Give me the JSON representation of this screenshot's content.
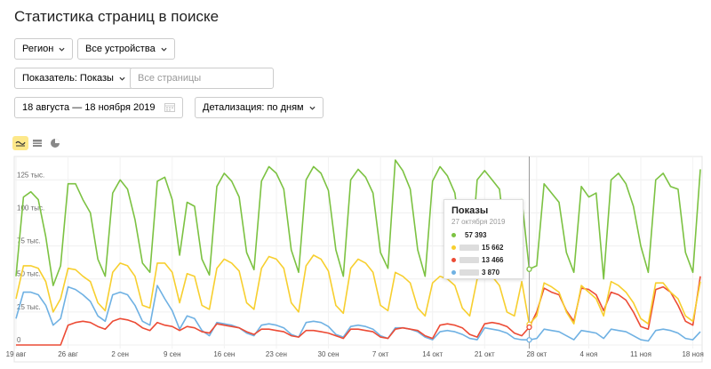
{
  "page": {
    "title": "Статистика страниц в поиске"
  },
  "filters": {
    "region_label": "Регион",
    "devices_label": "Все устройства",
    "metric_label": "Показатель: Показы",
    "pages_placeholder": "Все страницы",
    "date_range": "18 августа — 18 ноября 2019",
    "detail_label": "Детализация: по дням"
  },
  "view_icons": [
    "line-chart-icon",
    "stacked-area-icon",
    "pie-chart-icon"
  ],
  "tooltip": {
    "title": "Показы",
    "date": "27 октября 2019",
    "rows": [
      {
        "color": "#7cc242",
        "value": "57 393"
      },
      {
        "color": "#f7cf2f",
        "value": "15 662"
      },
      {
        "color": "#ec4b35",
        "value": "13 466"
      },
      {
        "color": "#6fb1e3",
        "value": "3 870"
      }
    ]
  },
  "chart_data": {
    "type": "line",
    "ylim": [
      0,
      140000
    ],
    "y_ticks": [
      {
        "value": 0,
        "label": "0"
      },
      {
        "value": 25000,
        "label": "25 тыс."
      },
      {
        "value": 50000,
        "label": "50 тыс."
      },
      {
        "value": 75000,
        "label": "75 тыс."
      },
      {
        "value": 100000,
        "label": "100 тыс."
      },
      {
        "value": 125000,
        "label": "125 тыс."
      }
    ],
    "x_start": "19 авг",
    "x_ticks": [
      {
        "day": 0,
        "label": "19 авг"
      },
      {
        "day": 7,
        "label": "26 авг"
      },
      {
        "day": 14,
        "label": "2 сен"
      },
      {
        "day": 21,
        "label": "9 сен"
      },
      {
        "day": 28,
        "label": "16 сен"
      },
      {
        "day": 35,
        "label": "23 сен"
      },
      {
        "day": 42,
        "label": "30 сен"
      },
      {
        "day": 49,
        "label": "7 окт"
      },
      {
        "day": 56,
        "label": "14 окт"
      },
      {
        "day": 63,
        "label": "21 окт"
      },
      {
        "day": 70,
        "label": "28 окт"
      },
      {
        "day": 77,
        "label": "4 ноя"
      },
      {
        "day": 84,
        "label": "11 ноя"
      },
      {
        "day": 91,
        "label": "18 ноя"
      }
    ],
    "cursor_day": 69,
    "series": [
      {
        "color": "#7cc242",
        "values": [
          52000,
          112000,
          116000,
          110000,
          82000,
          45000,
          60000,
          122000,
          122000,
          110000,
          100000,
          65000,
          52000,
          115000,
          125000,
          118000,
          95000,
          62000,
          55000,
          124000,
          127000,
          110000,
          68000,
          108000,
          105000,
          65000,
          53000,
          120000,
          130000,
          124000,
          112000,
          70000,
          57000,
          124000,
          135000,
          130000,
          118000,
          72000,
          55000,
          125000,
          135000,
          130000,
          117000,
          72000,
          52000,
          125000,
          133000,
          127000,
          115000,
          70000,
          58000,
          140000,
          132000,
          118000,
          72000,
          52000,
          124000,
          135000,
          128000,
          115000,
          70000,
          52000,
          125000,
          132000,
          125000,
          118000,
          70000,
          53000,
          110000,
          57393,
          60000,
          122000,
          115000,
          108000,
          70000,
          55000,
          120000,
          112000,
          115000,
          50000,
          125000,
          130000,
          122000,
          105000,
          75000,
          55000,
          125000,
          130000,
          120000,
          118000,
          70000,
          55000,
          133000
        ]
      },
      {
        "color": "#f7cf2f",
        "values": [
          35000,
          60000,
          60000,
          58000,
          48000,
          25000,
          35000,
          58000,
          57000,
          52000,
          48000,
          32000,
          26000,
          55000,
          62000,
          60000,
          52000,
          30000,
          28000,
          62000,
          62000,
          55000,
          32000,
          54000,
          52000,
          30000,
          27000,
          58000,
          65000,
          62000,
          56000,
          32000,
          27000,
          58000,
          67000,
          65000,
          58000,
          32000,
          25000,
          60000,
          68000,
          65000,
          56000,
          30000,
          24000,
          58000,
          65000,
          62000,
          55000,
          30000,
          26000,
          55000,
          52000,
          47000,
          28000,
          22000,
          47000,
          52000,
          50000,
          45000,
          28000,
          22000,
          50000,
          55000,
          52000,
          45000,
          25000,
          22000,
          48000,
          15662,
          22000,
          47000,
          44000,
          40000,
          25000,
          16000,
          45000,
          40000,
          35000,
          22000,
          48000,
          45000,
          40000,
          32000,
          20000,
          16000,
          47000,
          47000,
          40000,
          35000,
          22000,
          18000,
          48000
        ]
      },
      {
        "color": "#ec4b35",
        "values": [
          0,
          0,
          0,
          0,
          0,
          0,
          0,
          15000,
          17000,
          18000,
          17000,
          14000,
          12000,
          18000,
          20000,
          19000,
          17000,
          13000,
          11000,
          17000,
          15000,
          14000,
          11000,
          14000,
          13000,
          10000,
          9000,
          16000,
          15000,
          14000,
          13000,
          10000,
          8000,
          12000,
          12000,
          11000,
          10000,
          7000,
          6000,
          11000,
          11000,
          10000,
          9000,
          7000,
          5000,
          12000,
          12000,
          11000,
          10000,
          6000,
          5000,
          12000,
          13000,
          12000,
          11000,
          7000,
          5000,
          15000,
          16000,
          15000,
          13000,
          8000,
          6000,
          16000,
          17000,
          16000,
          14000,
          9000,
          7000,
          13466,
          25000,
          43000,
          40000,
          38000,
          26000,
          18000,
          43000,
          42000,
          38000,
          26000,
          40000,
          38000,
          34000,
          25000,
          14000,
          12000,
          42000,
          44000,
          40000,
          30000,
          18000,
          15000,
          52000
        ]
      },
      {
        "color": "#6fb1e3",
        "values": [
          20000,
          40000,
          40000,
          38000,
          30000,
          15000,
          20000,
          44000,
          42000,
          38000,
          33000,
          22000,
          18000,
          38000,
          40000,
          38000,
          30000,
          18000,
          15000,
          45000,
          35000,
          26000,
          12000,
          22000,
          20000,
          11000,
          7000,
          17000,
          16000,
          15000,
          13000,
          9000,
          7000,
          15000,
          16000,
          15000,
          13000,
          8000,
          6000,
          17000,
          18000,
          17000,
          14000,
          8000,
          6000,
          14000,
          15000,
          14000,
          12000,
          7000,
          5000,
          13000,
          13000,
          12000,
          10000,
          6000,
          4000,
          10000,
          11000,
          10000,
          8000,
          5000,
          4000,
          13000,
          12000,
          11000,
          9000,
          5000,
          4000,
          3870,
          5000,
          12000,
          11000,
          10000,
          7000,
          4000,
          11000,
          10000,
          9000,
          5000,
          12000,
          11000,
          10000,
          7000,
          4000,
          3000,
          11000,
          12000,
          11000,
          9000,
          5000,
          4000,
          10000
        ]
      }
    ]
  }
}
